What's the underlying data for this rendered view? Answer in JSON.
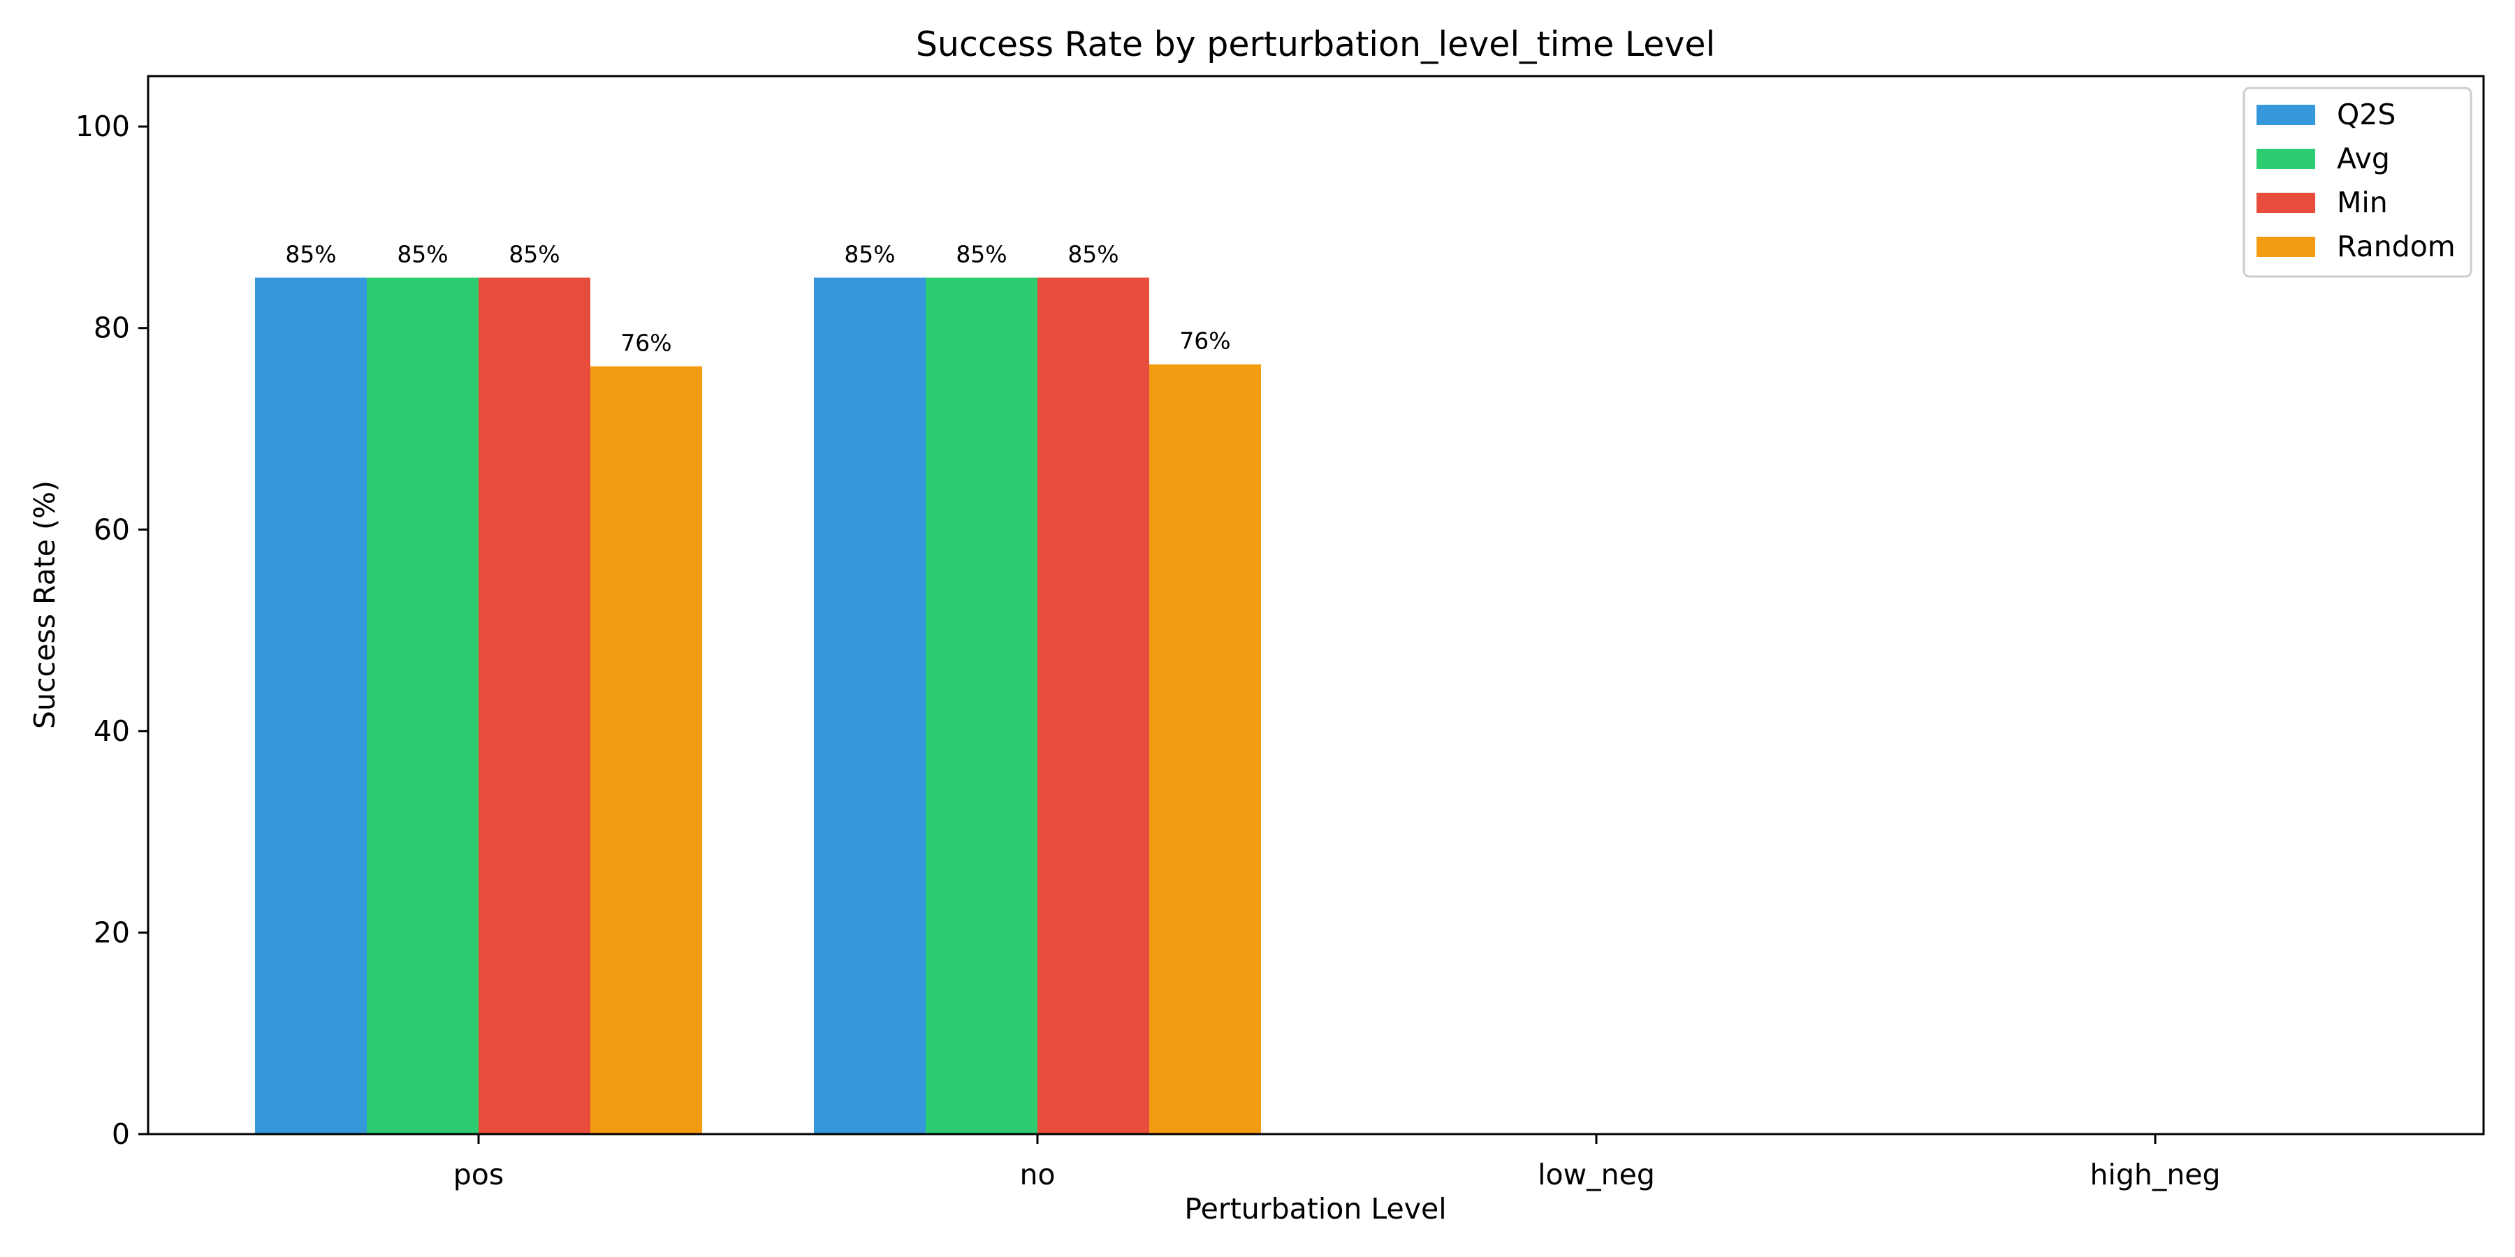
{
  "chart_data": {
    "type": "bar",
    "title": "Success Rate by perturbation_level_time Level",
    "xlabel": "Perturbation Level",
    "ylabel": "Success Rate (%)",
    "categories": [
      "pos",
      "no",
      "low_neg",
      "high_neg"
    ],
    "ylim": [
      0,
      105
    ],
    "yticks": [
      0,
      20,
      40,
      60,
      80,
      100
    ],
    "grid": false,
    "legend_position": "top-right",
    "series": [
      {
        "name": "Q2S",
        "color": "#3498db",
        "values": [
          85,
          85,
          null,
          null
        ],
        "labels": [
          "85%",
          "85%",
          "",
          ""
        ]
      },
      {
        "name": "Avg",
        "color": "#2ecc71",
        "values": [
          85,
          85,
          null,
          null
        ],
        "labels": [
          "85%",
          "85%",
          "",
          ""
        ]
      },
      {
        "name": "Min",
        "color": "#e74c3c",
        "values": [
          85,
          85,
          null,
          null
        ],
        "labels": [
          "85%",
          "85%",
          "",
          ""
        ]
      },
      {
        "name": "Random",
        "color": "#f39c12",
        "values": [
          76.2,
          76.4,
          null,
          null
        ],
        "labels": [
          "76%",
          "76%",
          "",
          ""
        ]
      }
    ]
  }
}
